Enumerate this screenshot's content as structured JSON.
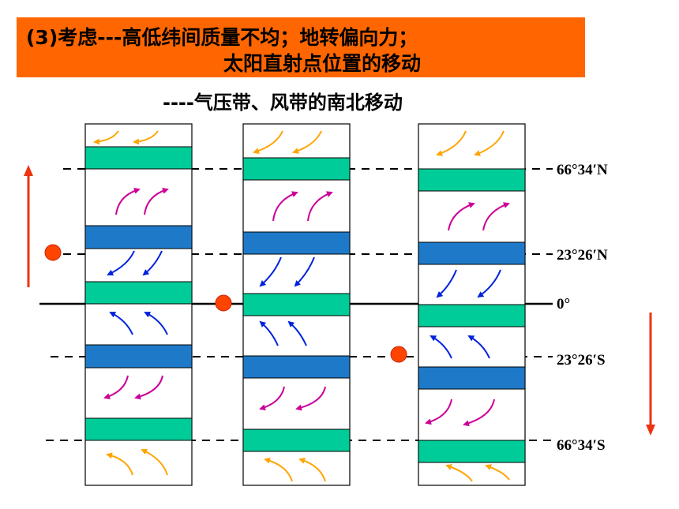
{
  "banner": {
    "line1": "(3)考虑---高低纬间质量不均；地转偏向力；",
    "line2": "太阳直射点位置的移动"
  },
  "subtitle": "----气压带、风带的南北移动",
  "latitude_labels": {
    "n66": "66°34′N",
    "n23": "23°26′N",
    "eq": "0°",
    "s23": "23°26′S",
    "s66": "66°34′S"
  },
  "colors": {
    "banner": "#ff6600",
    "subpolar_low_belt": "#00cc99",
    "subtropical_high_belt": "#1e7ac8",
    "sun_point": "#ff4400",
    "movement_arrow": "#ee3311",
    "polar_easterlies": "#ffa500",
    "westerlies": "#cc0099",
    "trade_winds": "#0022dd"
  },
  "panels": [
    {
      "name": "sun-north",
      "sun_position": "23°26′N"
    },
    {
      "name": "sun-equator",
      "sun_position": "0°"
    },
    {
      "name": "sun-south",
      "sun_position": "23°26′S"
    }
  ]
}
